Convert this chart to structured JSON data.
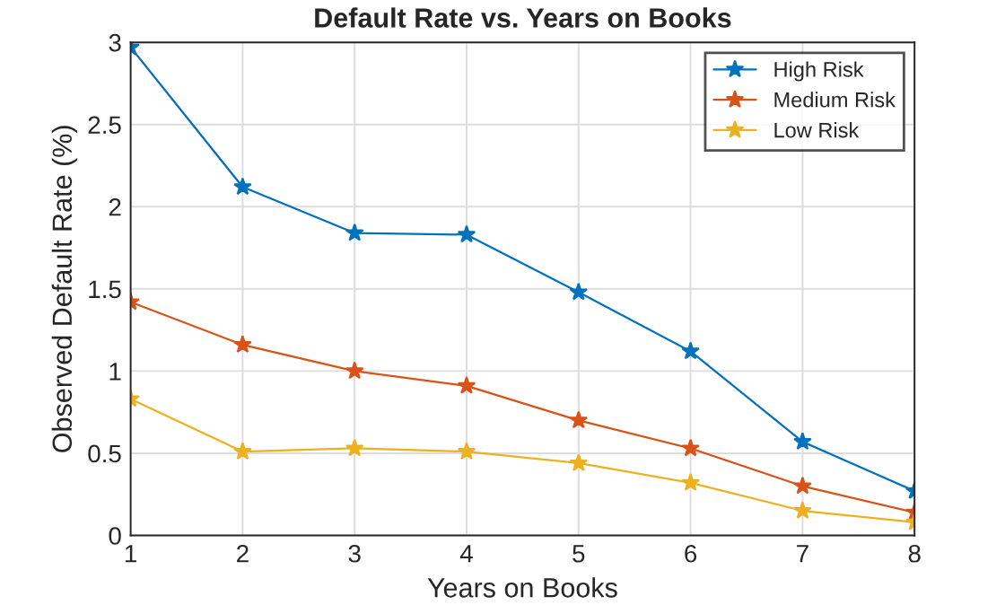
{
  "chart_data": {
    "type": "line",
    "title": "Default Rate vs. Years on Books",
    "xlabel": "Years on Books",
    "ylabel": "Observed Default Rate (%)",
    "x": [
      1,
      2,
      3,
      4,
      5,
      6,
      7,
      8
    ],
    "series": [
      {
        "name": "High Risk",
        "color": "#0072bd",
        "values": [
          2.97,
          2.12,
          1.84,
          1.83,
          1.48,
          1.12,
          0.57,
          0.27
        ]
      },
      {
        "name": "Medium Risk",
        "color": "#d95319",
        "values": [
          1.42,
          1.16,
          1.0,
          0.91,
          0.7,
          0.53,
          0.3,
          0.14
        ]
      },
      {
        "name": "Low Risk",
        "color": "#edb120",
        "values": [
          0.83,
          0.51,
          0.53,
          0.51,
          0.44,
          0.32,
          0.15,
          0.08
        ]
      }
    ],
    "xlim": [
      1,
      8
    ],
    "xticks": [
      1,
      2,
      3,
      4,
      5,
      6,
      7,
      8
    ],
    "ylim": [
      0,
      3
    ],
    "yticks": [
      0,
      0.5,
      1,
      1.5,
      2,
      2.5,
      3
    ],
    "grid": true,
    "legend": "top right",
    "marker": "star",
    "line_style": "solid"
  }
}
